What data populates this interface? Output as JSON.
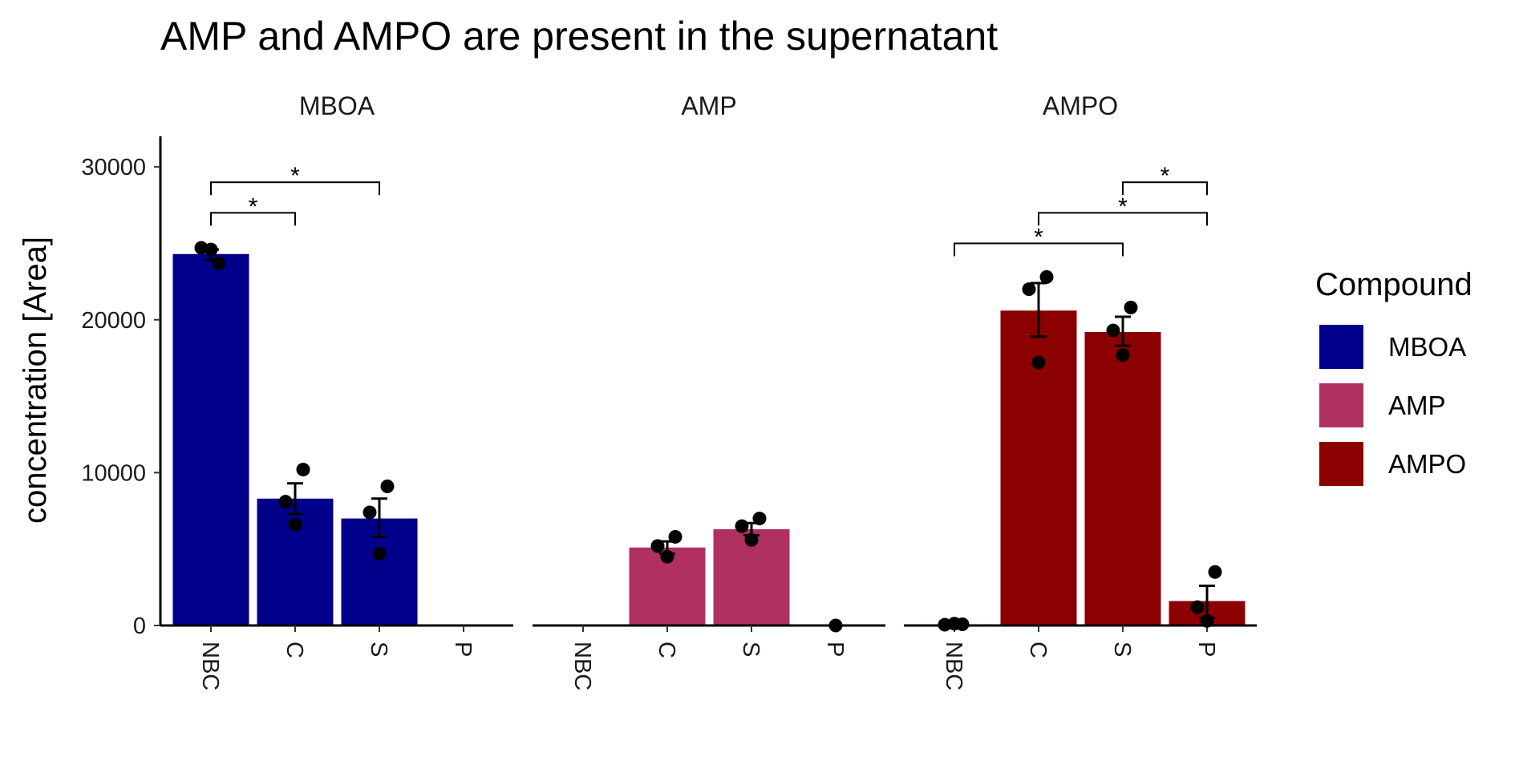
{
  "chart_data": {
    "type": "bar",
    "title": "AMP and AMPO are present in the supernatant",
    "ylabel": "concentration [Area]",
    "xlabel": "",
    "ylim": [
      0,
      32000
    ],
    "yticks": [
      0,
      10000,
      20000,
      30000
    ],
    "categories": [
      "NBC",
      "C",
      "S",
      "P"
    ],
    "legend": {
      "title": "Compound",
      "placement": "right",
      "items": [
        {
          "name": "MBOA",
          "color": "#00008B"
        },
        {
          "name": "AMP",
          "color": "#B03060"
        },
        {
          "name": "AMPO",
          "color": "#8B0000"
        }
      ]
    },
    "grid": false,
    "panels": [
      {
        "facet": "MBOA",
        "color": "#00008B",
        "bars": [
          {
            "category": "NBC",
            "mean": 24300,
            "se_low": 23900,
            "se_high": 24600,
            "points": [
              24700,
              23700,
              24600
            ]
          },
          {
            "category": "C",
            "mean": 8300,
            "se_low": 7300,
            "se_high": 9300,
            "points": [
              8100,
              10200,
              6600
            ]
          },
          {
            "category": "S",
            "mean": 7000,
            "se_low": 5800,
            "se_high": 8300,
            "points": [
              7400,
              9100,
              4700
            ]
          },
          {
            "category": "P",
            "mean": 0,
            "se_low": 0,
            "se_high": 0,
            "points": []
          }
        ],
        "significance": [
          {
            "from": "NBC",
            "to": "C",
            "y": 27000,
            "label": "*"
          },
          {
            "from": "NBC",
            "to": "S",
            "y": 29000,
            "label": "*"
          }
        ]
      },
      {
        "facet": "AMP",
        "color": "#B03060",
        "bars": [
          {
            "category": "NBC",
            "mean": 0,
            "se_low": 0,
            "se_high": 0,
            "points": []
          },
          {
            "category": "C",
            "mean": 5100,
            "se_low": 4700,
            "se_high": 5500,
            "points": [
              5200,
              5800,
              4500
            ]
          },
          {
            "category": "S",
            "mean": 6300,
            "se_low": 5900,
            "se_high": 6700,
            "points": [
              6500,
              7000,
              5600
            ]
          },
          {
            "category": "P",
            "mean": 0,
            "se_low": 0,
            "se_high": 0,
            "points": [
              0
            ]
          }
        ],
        "significance": []
      },
      {
        "facet": "AMPO",
        "color": "#8B0000",
        "bars": [
          {
            "category": "NBC",
            "mean": 80,
            "se_low": 0,
            "se_high": 150,
            "points": [
              50,
              80,
              120
            ]
          },
          {
            "category": "C",
            "mean": 20600,
            "se_low": 18900,
            "se_high": 22400,
            "points": [
              22000,
              22800,
              17200
            ]
          },
          {
            "category": "S",
            "mean": 19200,
            "se_low": 18300,
            "se_high": 20200,
            "points": [
              19300,
              20800,
              17700
            ]
          },
          {
            "category": "P",
            "mean": 1600,
            "se_low": 500,
            "se_high": 2600,
            "points": [
              1200,
              3500,
              300
            ]
          }
        ],
        "significance": [
          {
            "from": "NBC",
            "to": "S",
            "y": 25000,
            "label": "*"
          },
          {
            "from": "C",
            "to": "P",
            "y": 27000,
            "label": "*"
          },
          {
            "from": "S",
            "to": "P",
            "y": 29000,
            "label": "*"
          }
        ]
      }
    ]
  }
}
